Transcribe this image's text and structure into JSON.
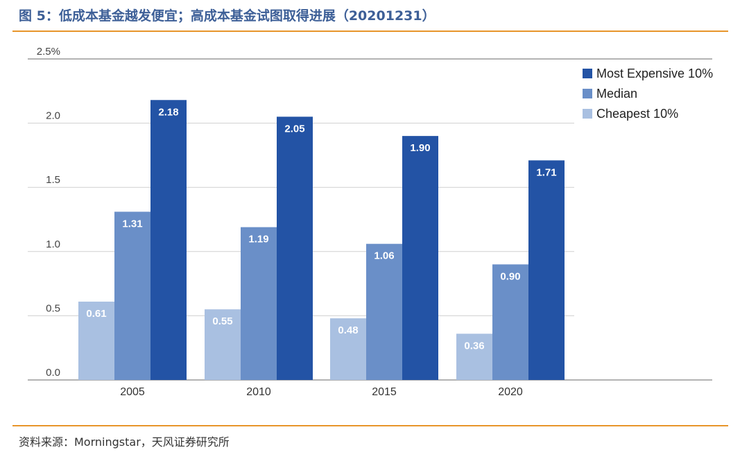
{
  "figure": {
    "title": "图 5：低成本基金越发便宜；高成本基金试图取得进展（20201231）",
    "source": "资料来源：Morningstar，天风证券研究所"
  },
  "chart_data": {
    "type": "bar",
    "categories": [
      "2005",
      "2010",
      "2015",
      "2020"
    ],
    "series": [
      {
        "name": "Cheapest 10%",
        "values": [
          0.61,
          0.55,
          0.48,
          0.36
        ],
        "labels": [
          "0.61",
          "0.55",
          "0.48",
          "0.36"
        ],
        "color": "#a9c0e1"
      },
      {
        "name": "Median",
        "values": [
          1.31,
          1.19,
          1.06,
          0.9
        ],
        "labels": [
          "1.31",
          "1.19",
          "1.06",
          "0.90"
        ],
        "color": "#6a8fc8"
      },
      {
        "name": "Most Expensive 10%",
        "values": [
          2.18,
          2.05,
          1.9,
          1.71
        ],
        "labels": [
          "2.18",
          "2.05",
          "1.90",
          "1.71"
        ],
        "color": "#2353a5"
      }
    ],
    "legend_order": [
      "Most Expensive 10%",
      "Median",
      "Cheapest 10%"
    ],
    "legend_position": "top-right",
    "yticks": [
      "0.0",
      "0.5",
      "1.0",
      "1.5",
      "2.0",
      "2.5%"
    ],
    "ylim": [
      0,
      2.5
    ],
    "grid": true,
    "gridline_color": "#d0d0d0",
    "title": "",
    "xlabel": "",
    "ylabel": ""
  }
}
